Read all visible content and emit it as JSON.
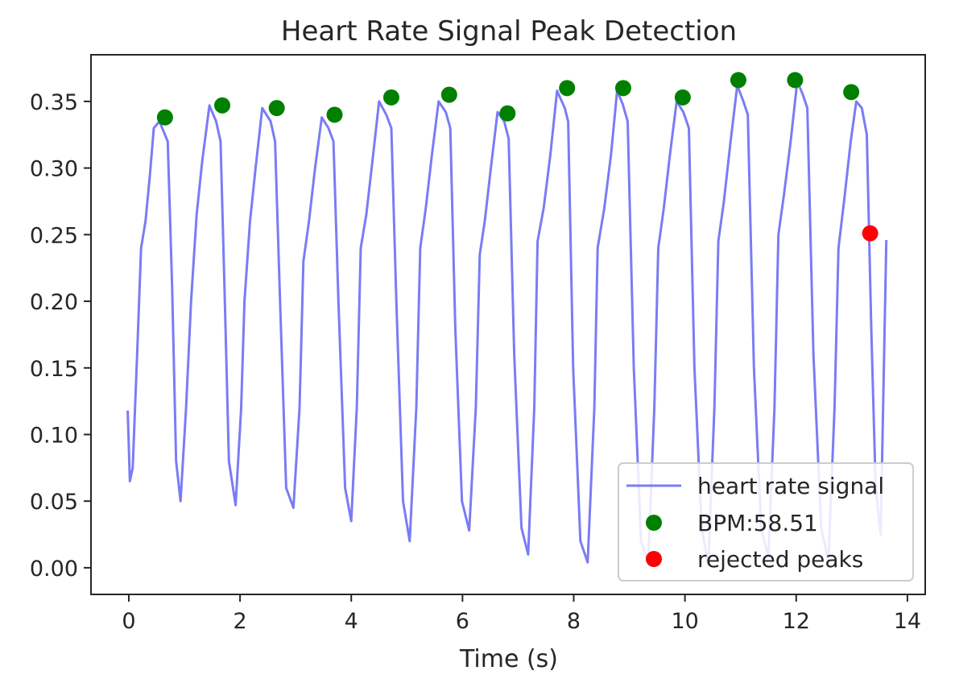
{
  "chart_data": {
    "type": "line",
    "title": "Heart Rate Signal Peak Detection",
    "xlabel": "Time (s)",
    "ylabel": "",
    "xlim": [
      -0.68,
      14.32
    ],
    "ylim": [
      -0.02,
      0.385
    ],
    "grid": false,
    "legend_position": "lower right",
    "x_ticks": [
      0,
      2,
      4,
      6,
      8,
      10,
      12,
      14
    ],
    "x_tick_labels": [
      "0",
      "2",
      "4",
      "6",
      "8",
      "10",
      "12",
      "14"
    ],
    "y_ticks": [
      0.0,
      0.05,
      0.1,
      0.15,
      0.2,
      0.25,
      0.3,
      0.35
    ],
    "y_tick_labels": [
      "0.00",
      "0.05",
      "0.10",
      "0.15",
      "0.20",
      "0.25",
      "0.30",
      "0.35"
    ],
    "series": [
      {
        "name": "heart rate signal",
        "kind": "line",
        "color": "#7a7cf5",
        "x": [
          -0.02,
          0.02,
          0.07,
          0.15,
          0.22,
          0.3,
          0.38,
          0.45,
          0.55,
          0.62,
          0.7,
          0.78,
          0.85,
          0.93,
          1.03,
          1.12,
          1.22,
          1.32,
          1.45,
          1.57,
          1.65,
          1.72,
          1.8,
          1.92,
          2.02,
          2.08,
          2.18,
          2.28,
          2.4,
          2.55,
          2.63,
          2.72,
          2.83,
          2.96,
          3.07,
          3.14,
          3.24,
          3.35,
          3.47,
          3.59,
          3.68,
          3.77,
          3.89,
          4.0,
          4.1,
          4.17,
          4.27,
          4.38,
          4.5,
          4.63,
          4.72,
          4.81,
          4.93,
          5.05,
          5.17,
          5.24,
          5.34,
          5.45,
          5.57,
          5.7,
          5.78,
          5.87,
          5.99,
          6.12,
          6.24,
          6.31,
          6.4,
          6.51,
          6.63,
          6.75,
          6.83,
          6.93,
          7.06,
          7.18,
          7.29,
          7.35,
          7.46,
          7.58,
          7.7,
          7.84,
          7.9,
          7.99,
          8.12,
          8.25,
          8.37,
          8.43,
          8.55,
          8.67,
          8.78,
          8.88,
          8.97,
          9.08,
          9.21,
          9.34,
          9.45,
          9.52,
          9.62,
          9.73,
          9.85,
          9.97,
          10.07,
          10.17,
          10.3,
          10.42,
          10.53,
          10.6,
          10.7,
          10.82,
          10.94,
          11.05,
          11.13,
          11.24,
          11.37,
          11.5,
          11.61,
          11.68,
          11.78,
          11.9,
          12.02,
          12.12,
          12.2,
          12.31,
          12.45,
          12.58,
          12.69,
          12.76,
          12.86,
          12.98,
          13.08,
          13.18,
          13.27,
          13.35,
          13.43,
          13.52,
          13.62
        ],
        "y": [
          0.118,
          0.065,
          0.075,
          0.16,
          0.24,
          0.26,
          0.295,
          0.33,
          0.335,
          0.328,
          0.32,
          0.21,
          0.08,
          0.05,
          0.12,
          0.2,
          0.265,
          0.305,
          0.347,
          0.335,
          0.32,
          0.21,
          0.08,
          0.047,
          0.12,
          0.2,
          0.26,
          0.3,
          0.345,
          0.335,
          0.32,
          0.2,
          0.06,
          0.045,
          0.12,
          0.23,
          0.26,
          0.3,
          0.338,
          0.33,
          0.32,
          0.2,
          0.06,
          0.035,
          0.12,
          0.24,
          0.265,
          0.305,
          0.35,
          0.34,
          0.33,
          0.2,
          0.05,
          0.02,
          0.12,
          0.24,
          0.27,
          0.31,
          0.35,
          0.342,
          0.33,
          0.18,
          0.05,
          0.028,
          0.12,
          0.235,
          0.26,
          0.3,
          0.342,
          0.335,
          0.322,
          0.16,
          0.03,
          0.01,
          0.12,
          0.245,
          0.27,
          0.31,
          0.358,
          0.345,
          0.335,
          0.15,
          0.02,
          0.004,
          0.12,
          0.24,
          0.27,
          0.31,
          0.358,
          0.348,
          0.335,
          0.15,
          0.02,
          0.004,
          0.12,
          0.24,
          0.27,
          0.31,
          0.35,
          0.342,
          0.33,
          0.15,
          0.03,
          0.002,
          0.12,
          0.245,
          0.275,
          0.32,
          0.362,
          0.35,
          0.34,
          0.15,
          0.03,
          0.008,
          0.12,
          0.25,
          0.28,
          0.32,
          0.365,
          0.355,
          0.345,
          0.16,
          0.03,
          0.005,
          0.12,
          0.24,
          0.275,
          0.32,
          0.35,
          0.345,
          0.325,
          0.18,
          0.06,
          0.025,
          0.246
        ]
      },
      {
        "name": "BPM:58.51",
        "kind": "scatter",
        "color": "#008000",
        "x": [
          0.65,
          1.68,
          2.66,
          3.7,
          4.72,
          5.76,
          6.81,
          7.88,
          8.89,
          9.96,
          10.96,
          11.98,
          12.99
        ],
        "y": [
          0.338,
          0.347,
          0.345,
          0.34,
          0.353,
          0.355,
          0.341,
          0.36,
          0.36,
          0.353,
          0.366,
          0.366,
          0.357
        ]
      },
      {
        "name": "rejected peaks",
        "kind": "scatter",
        "color": "#ff0000",
        "x": [
          13.33
        ],
        "y": [
          0.251
        ]
      }
    ]
  }
}
